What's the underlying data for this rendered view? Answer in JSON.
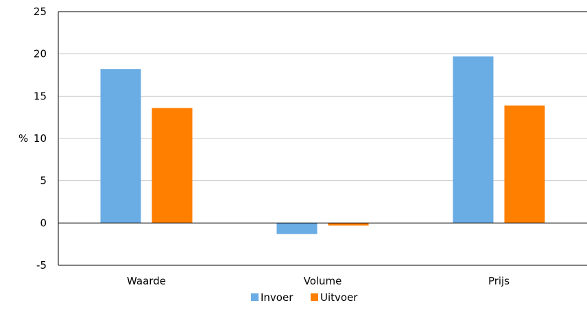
{
  "chart_data": {
    "type": "bar",
    "title": "",
    "xlabel": "",
    "ylabel": "%",
    "ylim": [
      -5,
      25
    ],
    "yticks": [
      -5,
      0,
      5,
      10,
      15,
      20,
      25
    ],
    "grid": true,
    "legend_position": "bottom",
    "categories": [
      "Waarde",
      "Volume",
      "Prijs"
    ],
    "series": [
      {
        "name": "Invoer",
        "color": "#6aace4",
        "values": [
          18.2,
          -1.3,
          19.7
        ]
      },
      {
        "name": "Uitvoer",
        "color": "#ff7f00",
        "values": [
          13.6,
          -0.3,
          13.9
        ]
      }
    ]
  }
}
